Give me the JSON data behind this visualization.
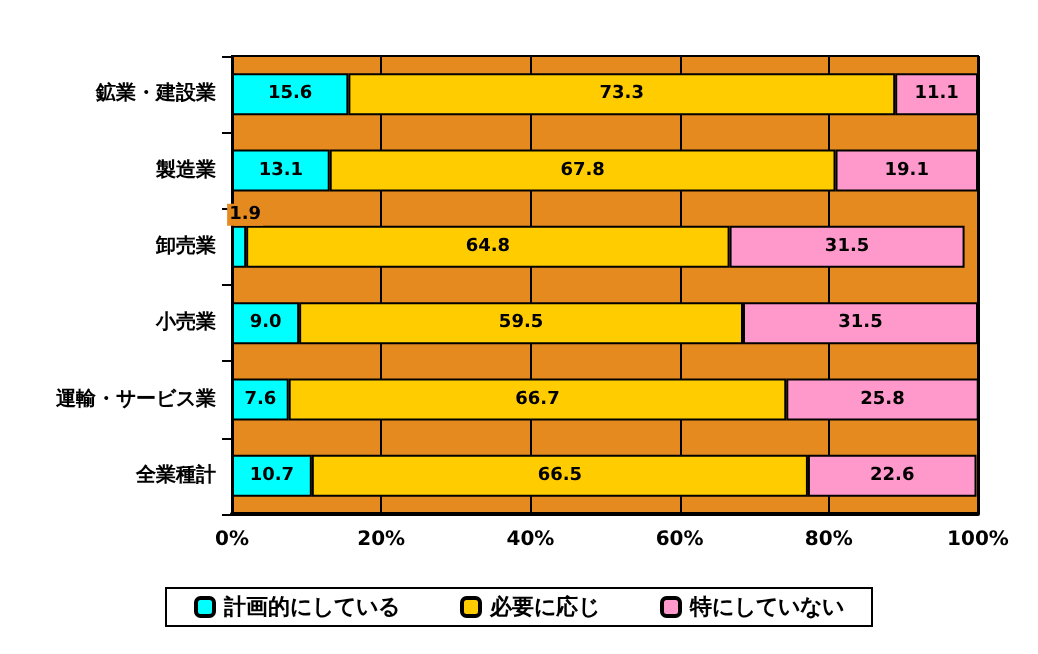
{
  "chart_data": {
    "type": "bar",
    "orientation": "horizontal",
    "stacked": true,
    "data_labels": true,
    "grid": "x",
    "legend": "bottom",
    "categories": [
      "鉱業・建設業",
      "製造業",
      "卸売業",
      "小売業",
      "運輸・サービス業",
      "全業種計"
    ],
    "series": [
      {
        "name": "計画的にしている",
        "color": "#00ffff",
        "values": [
          15.6,
          13.1,
          1.9,
          9.0,
          7.6,
          10.7
        ],
        "value_labels": [
          "15.6",
          "13.1",
          "1.9",
          "9.0",
          "7.6",
          "10.7"
        ]
      },
      {
        "name": "必要に応じ",
        "color": "#ffcc00",
        "values": [
          73.3,
          67.8,
          64.8,
          59.5,
          66.7,
          66.5
        ]
      },
      {
        "name": "特にしていない",
        "color": "#ff99cc",
        "values": [
          11.1,
          19.1,
          31.5,
          31.5,
          25.8,
          22.6
        ]
      }
    ],
    "xlim": [
      0,
      100
    ],
    "xticks": [
      {
        "value": 0,
        "label": "0%"
      },
      {
        "value": 20,
        "label": "20%"
      },
      {
        "value": 40,
        "label": "40%"
      },
      {
        "value": 60,
        "label": "60%"
      },
      {
        "value": 80,
        "label": "80%"
      },
      {
        "value": 100,
        "label": "100%"
      }
    ]
  }
}
